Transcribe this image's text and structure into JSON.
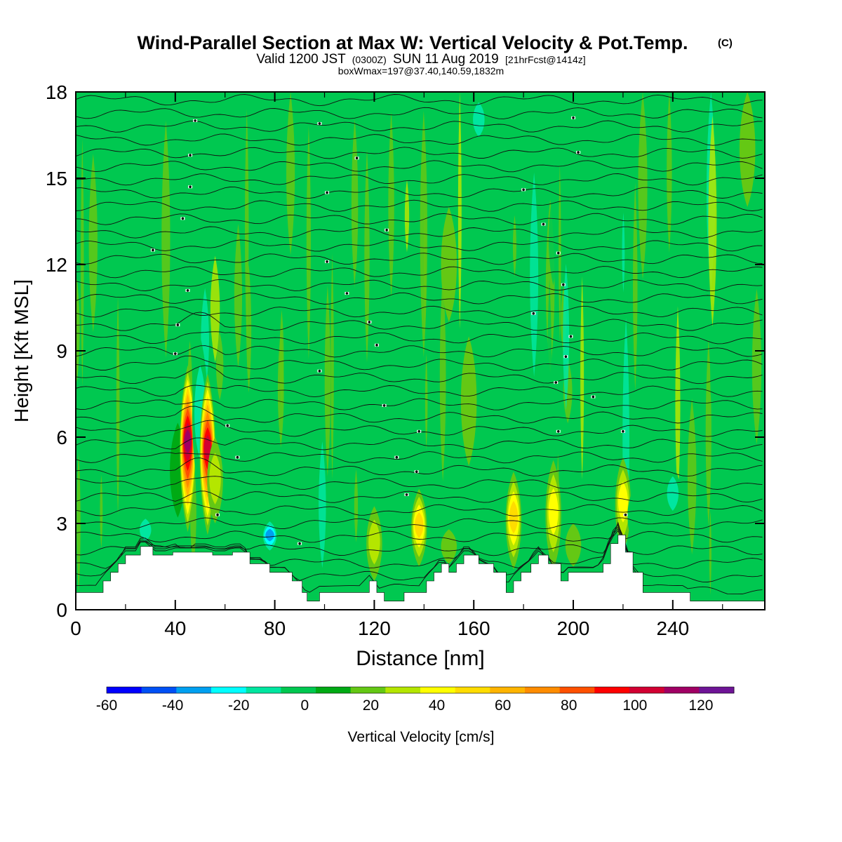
{
  "chart_data": {
    "type": "heatmap",
    "title": {
      "main": "Wind-Parallel Section at Max W: Vertical Velocity & Pot.Temp.",
      "copyright": "(C)",
      "valid_prefix": "Valid 1200 JST",
      "valid_utc": "(0300Z)",
      "valid_date": "SUN 11 Aug 2019",
      "forecast": "[21hrFcst@1414z]",
      "stats": "boxWmax=197@37.40,140.59,1832m"
    },
    "xlabel": "Distance [nm]",
    "ylabel": "Height [Kft MSL]",
    "xlim": [
      0,
      277
    ],
    "ylim": [
      0,
      18
    ],
    "xticks": [
      "0",
      "40",
      "80",
      "120",
      "160",
      "200",
      "240"
    ],
    "xtick_values": [
      0,
      40,
      80,
      120,
      160,
      200,
      240
    ],
    "yticks": [
      "0",
      "3",
      "6",
      "9",
      "12",
      "15",
      "18"
    ],
    "ytick_values": [
      0,
      3,
      6,
      9,
      12,
      15,
      18
    ],
    "colorbar": {
      "label": "Vertical Velocity [cm/s]",
      "range": [
        -60,
        130
      ],
      "step": 10,
      "tick_labels": [
        "-60",
        "-40",
        "-20",
        "0",
        "20",
        "40",
        "60",
        "80",
        "100",
        "120"
      ],
      "tick_values": [
        -60,
        -40,
        -20,
        0,
        20,
        40,
        60,
        80,
        100,
        120
      ],
      "colors": [
        "#0000ff",
        "#0050f5",
        "#00a0f0",
        "#00ffff",
        "#00e6a0",
        "#00c850",
        "#00aa14",
        "#64c814",
        "#b4e600",
        "#ffff00",
        "#ffdc00",
        "#ffb400",
        "#ff8c00",
        "#ff5000",
        "#ff0000",
        "#d20032",
        "#a00064",
        "#6e1496"
      ]
    },
    "background_value": 0,
    "w_features": [
      {
        "x": 41,
        "y0": 3.2,
        "y1": 6.5,
        "w": 8
      },
      {
        "x": 45,
        "y0": 2.7,
        "y1": 8.5,
        "w": 100
      },
      {
        "x": 50,
        "y0": 4.0,
        "y1": 9.5,
        "w": -20
      },
      {
        "x": 53,
        "y0": 2.6,
        "y1": 8.2,
        "w": 90
      },
      {
        "x": 56,
        "y0": 3.0,
        "y1": 6.0,
        "w": 20
      },
      {
        "x": 28,
        "y0": 2.1,
        "y1": 3.4,
        "w": -20
      },
      {
        "x": 78,
        "y0": 1.9,
        "y1": 3.2,
        "w": -40
      },
      {
        "x": 120,
        "y0": 1.0,
        "y1": 3.6,
        "w": 25
      },
      {
        "x": 138,
        "y0": 1.5,
        "y1": 4.2,
        "w": 40
      },
      {
        "x": 150,
        "y0": 1.6,
        "y1": 2.8,
        "w": 15
      },
      {
        "x": 158,
        "y0": 5.0,
        "y1": 9.5,
        "w": 15
      },
      {
        "x": 176,
        "y0": 1.4,
        "y1": 4.8,
        "w": 45
      },
      {
        "x": 192,
        "y0": 1.4,
        "y1": 5.2,
        "w": 35
      },
      {
        "x": 200,
        "y0": 1.5,
        "y1": 3.0,
        "w": 12
      },
      {
        "x": 220,
        "y0": 2.0,
        "y1": 5.3,
        "w": 30
      },
      {
        "x": 225,
        "y0": 2.2,
        "y1": 4.3,
        "w": -10
      },
      {
        "x": 240,
        "y0": 3.0,
        "y1": 5.0,
        "w": -25
      },
      {
        "x": 162,
        "y0": 16.0,
        "y1": 18.0,
        "w": -20
      },
      {
        "x": 150,
        "y0": 10.0,
        "y1": 14.0,
        "w": 12
      },
      {
        "x": 270,
        "y0": 14.0,
        "y1": 18.0,
        "w": 15
      }
    ],
    "terrain": [
      {
        "x": 0,
        "y": 0.6
      },
      {
        "x": 8,
        "y": 0.6
      },
      {
        "x": 11,
        "y": 1.0
      },
      {
        "x": 14,
        "y": 1.3
      },
      {
        "x": 17,
        "y": 1.6
      },
      {
        "x": 20,
        "y": 1.9
      },
      {
        "x": 24,
        "y": 1.9
      },
      {
        "x": 26,
        "y": 2.2
      },
      {
        "x": 29,
        "y": 2.2
      },
      {
        "x": 31,
        "y": 1.9
      },
      {
        "x": 37,
        "y": 1.9
      },
      {
        "x": 39,
        "y": 2.0
      },
      {
        "x": 53,
        "y": 2.0
      },
      {
        "x": 55,
        "y": 1.9
      },
      {
        "x": 60,
        "y": 1.9
      },
      {
        "x": 63,
        "y": 2.0
      },
      {
        "x": 67,
        "y": 2.0
      },
      {
        "x": 70,
        "y": 1.6
      },
      {
        "x": 75,
        "y": 1.6
      },
      {
        "x": 78,
        "y": 1.3
      },
      {
        "x": 84,
        "y": 1.3
      },
      {
        "x": 87,
        "y": 1.0
      },
      {
        "x": 91,
        "y": 0.6
      },
      {
        "x": 93,
        "y": 0.3
      },
      {
        "x": 98,
        "y": 0.6
      },
      {
        "x": 114,
        "y": 0.6
      },
      {
        "x": 118,
        "y": 1.0
      },
      {
        "x": 121,
        "y": 0.6
      },
      {
        "x": 124,
        "y": 0.3
      },
      {
        "x": 132,
        "y": 0.6
      },
      {
        "x": 138,
        "y": 0.6
      },
      {
        "x": 141,
        "y": 1.0
      },
      {
        "x": 144,
        "y": 1.3
      },
      {
        "x": 147,
        "y": 1.6
      },
      {
        "x": 150,
        "y": 1.3
      },
      {
        "x": 153,
        "y": 1.6
      },
      {
        "x": 156,
        "y": 1.9
      },
      {
        "x": 159,
        "y": 1.9
      },
      {
        "x": 162,
        "y": 1.6
      },
      {
        "x": 168,
        "y": 1.3
      },
      {
        "x": 173,
        "y": 0.6
      },
      {
        "x": 176,
        "y": 1.0
      },
      {
        "x": 179,
        "y": 1.3
      },
      {
        "x": 183,
        "y": 1.6
      },
      {
        "x": 186,
        "y": 1.9
      },
      {
        "x": 190,
        "y": 1.6
      },
      {
        "x": 195,
        "y": 1.0
      },
      {
        "x": 198,
        "y": 1.3
      },
      {
        "x": 209,
        "y": 1.3
      },
      {
        "x": 212,
        "y": 1.6
      },
      {
        "x": 215,
        "y": 2.3
      },
      {
        "x": 218,
        "y": 2.6
      },
      {
        "x": 221,
        "y": 2.0
      },
      {
        "x": 224,
        "y": 1.3
      },
      {
        "x": 228,
        "y": 0.6
      },
      {
        "x": 245,
        "y": 0.6
      },
      {
        "x": 247,
        "y": 0.3
      },
      {
        "x": 277,
        "y": 0.3
      }
    ],
    "theta_contours": {
      "count": 38,
      "base_height": 0.7,
      "spacing": 0.46,
      "label_positions": [
        {
          "x": 48,
          "y": 17.0
        },
        {
          "x": 98,
          "y": 16.9
        },
        {
          "x": 200,
          "y": 17.1
        },
        {
          "x": 46,
          "y": 15.8
        },
        {
          "x": 113,
          "y": 15.7
        },
        {
          "x": 202,
          "y": 15.9
        },
        {
          "x": 46,
          "y": 14.7
        },
        {
          "x": 101,
          "y": 14.5
        },
        {
          "x": 180,
          "y": 14.6
        },
        {
          "x": 43,
          "y": 13.6
        },
        {
          "x": 125,
          "y": 13.2
        },
        {
          "x": 188,
          "y": 13.4
        },
        {
          "x": 31,
          "y": 12.5
        },
        {
          "x": 101,
          "y": 12.1
        },
        {
          "x": 194,
          "y": 12.4
        },
        {
          "x": 45,
          "y": 11.1
        },
        {
          "x": 109,
          "y": 11.0
        },
        {
          "x": 196,
          "y": 11.3
        },
        {
          "x": 41,
          "y": 9.9
        },
        {
          "x": 118,
          "y": 10.0
        },
        {
          "x": 184,
          "y": 10.3
        },
        {
          "x": 40,
          "y": 8.9
        },
        {
          "x": 121,
          "y": 9.2
        },
        {
          "x": 199,
          "y": 9.5
        },
        {
          "x": 98,
          "y": 8.3
        },
        {
          "x": 197,
          "y": 8.8
        },
        {
          "x": 193,
          "y": 7.9
        },
        {
          "x": 124,
          "y": 7.1
        },
        {
          "x": 208,
          "y": 7.4
        },
        {
          "x": 61,
          "y": 6.4
        },
        {
          "x": 138,
          "y": 6.2
        },
        {
          "x": 194,
          "y": 6.2
        },
        {
          "x": 220,
          "y": 6.2
        },
        {
          "x": 65,
          "y": 5.3
        },
        {
          "x": 129,
          "y": 5.3
        },
        {
          "x": 137,
          "y": 4.8
        },
        {
          "x": 133,
          "y": 4.0
        },
        {
          "x": 57,
          "y": 3.3
        },
        {
          "x": 221,
          "y": 3.3
        },
        {
          "x": 90,
          "y": 2.3
        }
      ]
    }
  }
}
